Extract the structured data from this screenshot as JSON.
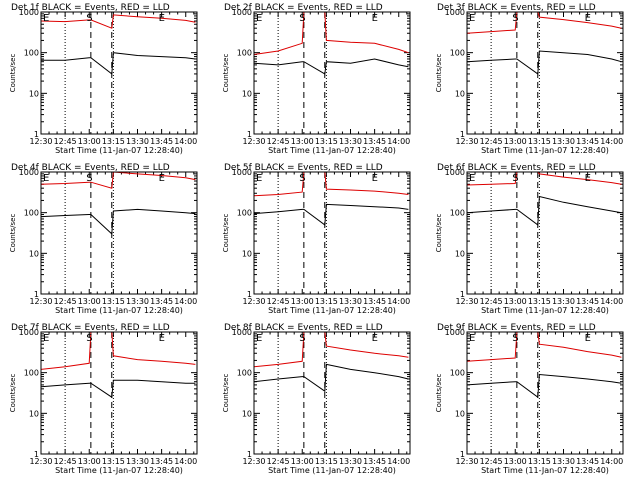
{
  "figure": {
    "x_label": "Start Time (11-Jan-07 12:28:40)",
    "y_label": "Counts/sec",
    "x_ticks": [
      "12:30",
      "12:45",
      "13:00",
      "13:15",
      "13:30",
      "13:45",
      "14:00"
    ],
    "y_ticks": [
      "1",
      "10",
      "100",
      "1000"
    ],
    "markers": {
      "start": "S",
      "end": "E"
    },
    "colors": {
      "events": "#000000",
      "lld": "#dd0000"
    }
  },
  "chart_data": [
    {
      "type": "line",
      "title": "Det 1f BLACK = Events, RED = LLD",
      "x_unit": "minutes after 12:30",
      "xlim": [
        0,
        97
      ],
      "ylim": [
        1,
        1000
      ],
      "ylog": true,
      "vlines_dotted": [
        15,
        45
      ],
      "vlines_dashed": [
        31,
        44
      ],
      "marker_s_x": 30,
      "marker_e_x": 75,
      "series": [
        {
          "name": "Events",
          "color": "#000000",
          "x": [
            0,
            15,
            30,
            31,
            44,
            45,
            60,
            75,
            90,
            96
          ],
          "y": [
            65,
            65,
            75,
            75,
            30,
            100,
            85,
            80,
            75,
            70
          ]
        },
        {
          "name": "LLD",
          "color": "#dd0000",
          "x": [
            0,
            15,
            30,
            31,
            44,
            45,
            60,
            75,
            90,
            96
          ],
          "y": [
            600,
            580,
            640,
            640,
            400,
            850,
            760,
            700,
            620,
            560
          ]
        }
      ]
    },
    {
      "type": "line",
      "title": "Det 2f BLACK = Events, RED = LLD",
      "x_unit": "minutes after 12:30",
      "xlim": [
        0,
        97
      ],
      "ylim": [
        1,
        1000
      ],
      "ylog": true,
      "vlines_dotted": [
        15,
        45
      ],
      "vlines_dashed": [
        31,
        44
      ],
      "marker_s_x": 30,
      "marker_e_x": 75,
      "series": [
        {
          "name": "Events",
          "color": "#000000",
          "x": [
            0,
            15,
            30,
            31,
            44,
            45,
            60,
            75,
            90,
            96
          ],
          "y": [
            55,
            50,
            60,
            60,
            30,
            60,
            55,
            70,
            50,
            45
          ]
        },
        {
          "name": "LLD",
          "color": "#dd0000",
          "x": [
            0,
            15,
            30,
            31,
            44,
            45,
            60,
            75,
            90,
            96
          ],
          "y": [
            90,
            110,
            170,
            1000,
            1000,
            200,
            180,
            170,
            120,
            100
          ]
        }
      ]
    },
    {
      "type": "line",
      "title": "Det 3f BLACK = Events, RED = LLD",
      "x_unit": "minutes after 12:30",
      "xlim": [
        0,
        97
      ],
      "ylim": [
        1,
        1000
      ],
      "ylog": true,
      "vlines_dotted": [
        15,
        45
      ],
      "vlines_dashed": [
        31,
        44
      ],
      "marker_s_x": 30,
      "marker_e_x": 75,
      "series": [
        {
          "name": "Events",
          "color": "#000000",
          "x": [
            0,
            15,
            30,
            31,
            44,
            45,
            60,
            75,
            90,
            96
          ],
          "y": [
            60,
            65,
            70,
            70,
            30,
            110,
            100,
            90,
            70,
            60
          ]
        },
        {
          "name": "LLD",
          "color": "#dd0000",
          "x": [
            0,
            15,
            30,
            31,
            44,
            45,
            60,
            75,
            90,
            96
          ],
          "y": [
            300,
            330,
            360,
            1000,
            1000,
            750,
            650,
            550,
            450,
            400
          ]
        }
      ]
    },
    {
      "type": "line",
      "title": "Det 4f BLACK = Events, RED = LLD",
      "x_unit": "minutes after 12:30",
      "xlim": [
        0,
        97
      ],
      "ylim": [
        1,
        1000
      ],
      "ylog": true,
      "vlines_dotted": [
        15,
        45
      ],
      "vlines_dashed": [
        31,
        44
      ],
      "marker_s_x": 30,
      "marker_e_x": 75,
      "series": [
        {
          "name": "Events",
          "color": "#000000",
          "x": [
            0,
            15,
            30,
            31,
            44,
            45,
            60,
            75,
            90,
            96
          ],
          "y": [
            80,
            85,
            90,
            90,
            30,
            110,
            120,
            110,
            100,
            95
          ]
        },
        {
          "name": "LLD",
          "color": "#dd0000",
          "x": [
            0,
            15,
            30,
            31,
            44,
            45,
            60,
            75,
            90,
            96
          ],
          "y": [
            500,
            520,
            560,
            560,
            400,
            1000,
            900,
            820,
            720,
            650
          ]
        }
      ]
    },
    {
      "type": "line",
      "title": "Det 5f BLACK = Events, RED = LLD",
      "x_unit": "minutes after 12:30",
      "xlim": [
        0,
        97
      ],
      "ylim": [
        1,
        1000
      ],
      "ylog": true,
      "vlines_dotted": [
        15,
        45
      ],
      "vlines_dashed": [
        31,
        44
      ],
      "marker_s_x": 30,
      "marker_e_x": 75,
      "series": [
        {
          "name": "Events",
          "color": "#000000",
          "x": [
            0,
            15,
            30,
            31,
            44,
            45,
            60,
            75,
            90,
            96
          ],
          "y": [
            95,
            105,
            120,
            120,
            50,
            160,
            150,
            140,
            130,
            120
          ]
        },
        {
          "name": "LLD",
          "color": "#dd0000",
          "x": [
            0,
            15,
            30,
            31,
            44,
            45,
            60,
            75,
            90,
            96
          ],
          "y": [
            260,
            280,
            320,
            1000,
            1000,
            380,
            360,
            340,
            300,
            280
          ]
        }
      ]
    },
    {
      "type": "line",
      "title": "Det 6f BLACK = Events, RED = LLD",
      "x_unit": "minutes after 12:30",
      "xlim": [
        0,
        97
      ],
      "ylim": [
        1,
        1000
      ],
      "ylog": true,
      "vlines_dotted": [
        15,
        45
      ],
      "vlines_dashed": [
        31,
        44
      ],
      "marker_s_x": 30,
      "marker_e_x": 75,
      "series": [
        {
          "name": "Events",
          "color": "#000000",
          "x": [
            0,
            15,
            30,
            31,
            44,
            45,
            60,
            75,
            90,
            96
          ],
          "y": [
            100,
            110,
            120,
            120,
            50,
            250,
            180,
            140,
            110,
            100
          ]
        },
        {
          "name": "LLD",
          "color": "#dd0000",
          "x": [
            0,
            15,
            30,
            31,
            44,
            45,
            60,
            75,
            90,
            96
          ],
          "y": [
            480,
            500,
            520,
            1000,
            1000,
            900,
            750,
            650,
            550,
            500
          ]
        }
      ]
    },
    {
      "type": "line",
      "title": "Det 7f BLACK = Events, RED = LLD",
      "x_unit": "minutes after 12:30",
      "xlim": [
        0,
        97
      ],
      "ylim": [
        1,
        1000
      ],
      "ylog": true,
      "vlines_dotted": [
        15,
        45
      ],
      "vlines_dashed": [
        31,
        44
      ],
      "marker_s_x": 30,
      "marker_e_x": 75,
      "series": [
        {
          "name": "Events",
          "color": "#000000",
          "x": [
            0,
            15,
            30,
            31,
            44,
            45,
            60,
            75,
            90,
            96
          ],
          "y": [
            45,
            50,
            55,
            55,
            25,
            65,
            65,
            60,
            55,
            55
          ]
        },
        {
          "name": "LLD",
          "color": "#dd0000",
          "x": [
            0,
            15,
            30,
            31,
            44,
            45,
            60,
            75,
            90,
            96
          ],
          "y": [
            120,
            140,
            170,
            1000,
            1000,
            260,
            210,
            190,
            170,
            160
          ]
        }
      ]
    },
    {
      "type": "line",
      "title": "Det 8f BLACK = Events, RED = LLD",
      "x_unit": "minutes after 12:30",
      "xlim": [
        0,
        97
      ],
      "ylim": [
        1,
        1000
      ],
      "ylog": true,
      "vlines_dotted": [
        15,
        45
      ],
      "vlines_dashed": [
        31,
        44
      ],
      "marker_s_x": 30,
      "marker_e_x": 75,
      "series": [
        {
          "name": "Events",
          "color": "#000000",
          "x": [
            0,
            15,
            30,
            31,
            44,
            45,
            60,
            75,
            90,
            96
          ],
          "y": [
            60,
            70,
            80,
            80,
            35,
            160,
            120,
            100,
            80,
            70
          ]
        },
        {
          "name": "LLD",
          "color": "#dd0000",
          "x": [
            0,
            15,
            30,
            31,
            44,
            45,
            60,
            75,
            90,
            96
          ],
          "y": [
            140,
            160,
            190,
            1000,
            1000,
            450,
            360,
            300,
            260,
            240
          ]
        }
      ]
    },
    {
      "type": "line",
      "title": "Det 9f BLACK = Events, RED = LLD",
      "x_unit": "minutes after 12:30",
      "xlim": [
        0,
        97
      ],
      "ylim": [
        1,
        1000
      ],
      "ylog": true,
      "vlines_dotted": [
        15,
        45
      ],
      "vlines_dashed": [
        31,
        44
      ],
      "marker_s_x": 30,
      "marker_e_x": 75,
      "series": [
        {
          "name": "Events",
          "color": "#000000",
          "x": [
            0,
            15,
            30,
            31,
            44,
            45,
            60,
            75,
            90,
            96
          ],
          "y": [
            50,
            55,
            60,
            60,
            25,
            90,
            80,
            70,
            60,
            55
          ]
        },
        {
          "name": "LLD",
          "color": "#dd0000",
          "x": [
            0,
            15,
            30,
            31,
            44,
            45,
            60,
            75,
            90,
            96
          ],
          "y": [
            190,
            210,
            230,
            1000,
            1000,
            500,
            420,
            330,
            270,
            240
          ]
        }
      ]
    }
  ]
}
